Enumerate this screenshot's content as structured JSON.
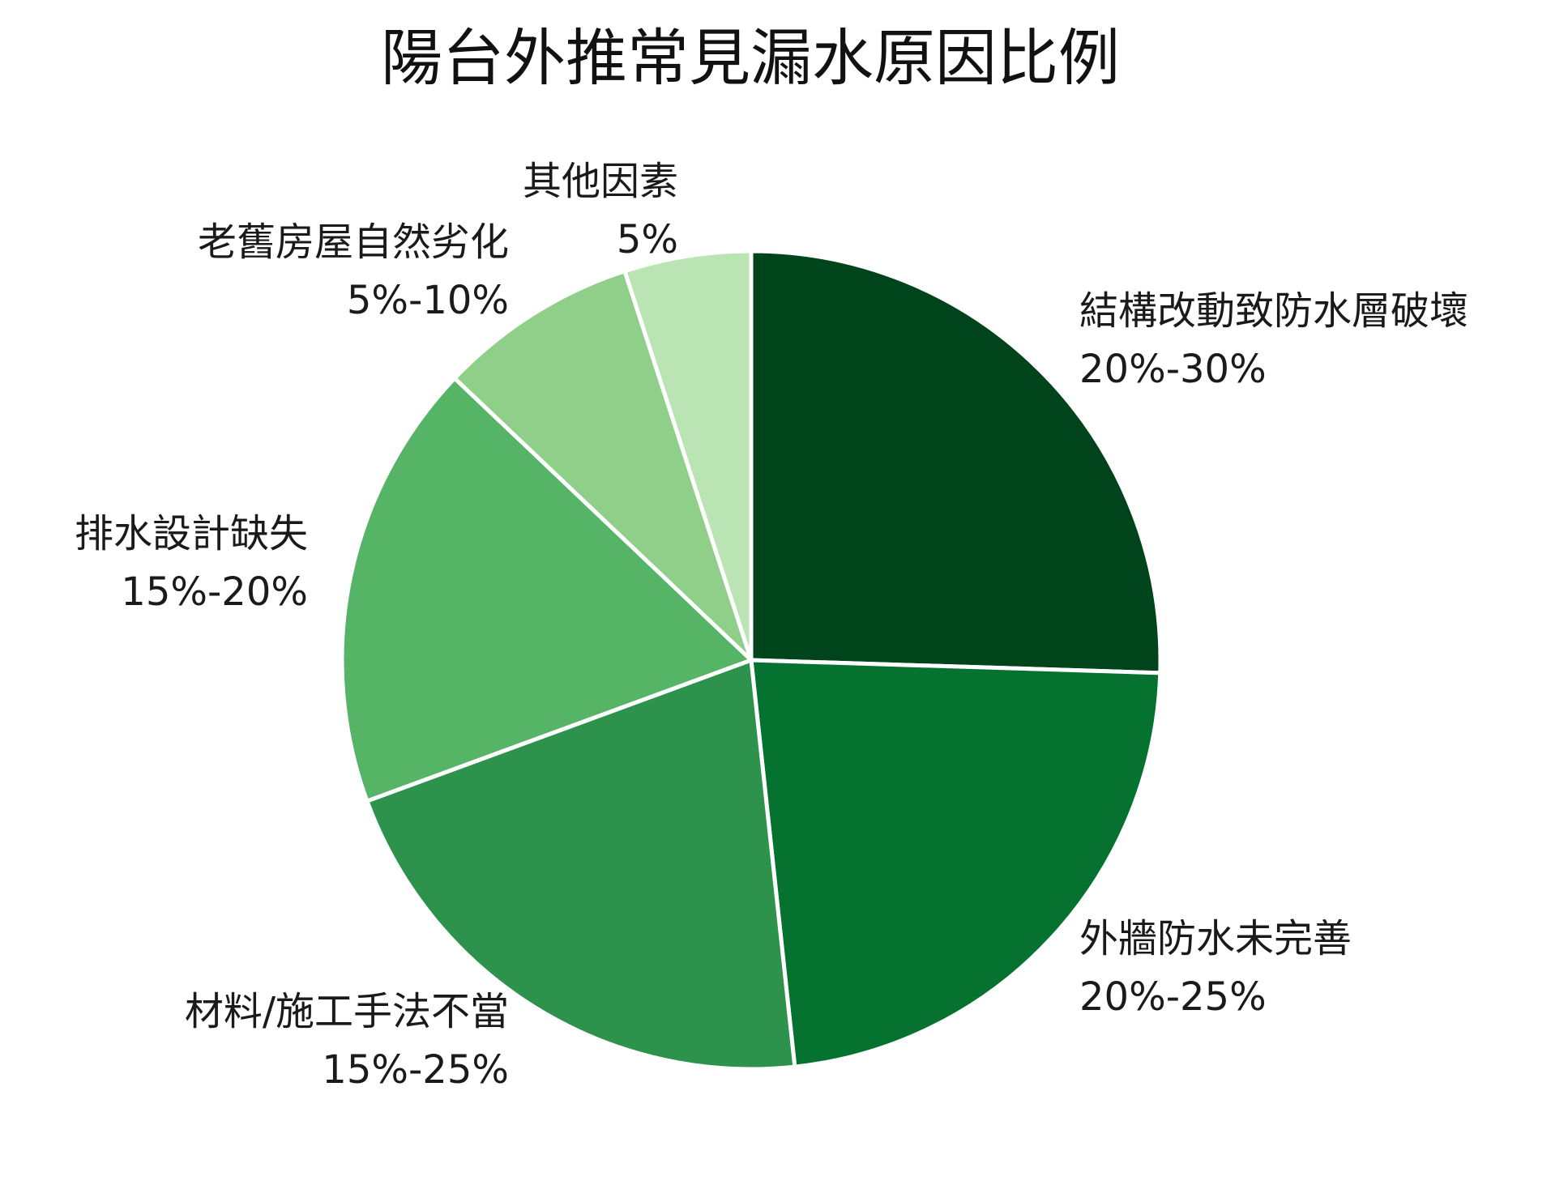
{
  "chart_data": {
    "type": "pie",
    "title": "陽台外推常見漏水原因比例",
    "start_angle_deg": 0,
    "direction": "clockwise",
    "legend": "none",
    "slices": [
      {
        "label": "結構改動致防水層破壞",
        "range_text": "20%-30%",
        "value": 25.5,
        "color": "#00441b"
      },
      {
        "label": "外牆防水未完善",
        "range_text": "20%-25%",
        "value": 22.8,
        "color": "#06722f"
      },
      {
        "label": "材料/施工手法不當",
        "range_text": "15%-25%",
        "value": 21.1,
        "color": "#2c924c"
      },
      {
        "label": "排水設計缺失",
        "range_text": "15%-20%",
        "value": 17.7,
        "color": "#56b467"
      },
      {
        "label": "老舊房屋自然劣化",
        "range_text": "5%-10%",
        "value": 7.9,
        "color": "#8fcf89"
      },
      {
        "label": "其他因素",
        "range_text": "5%",
        "value": 5.0,
        "color": "#bae4b4"
      }
    ]
  }
}
